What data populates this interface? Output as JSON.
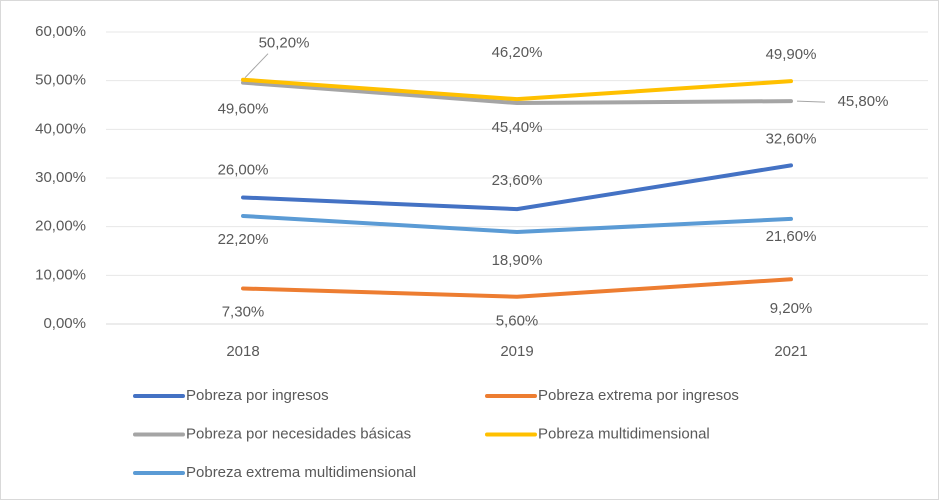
{
  "chart_data": {
    "type": "line",
    "categories": [
      "2018",
      "2019",
      "2021"
    ],
    "series": [
      {
        "name": "Pobreza por ingresos",
        "color": "#4472c4",
        "values": [
          26.0,
          23.6,
          32.6
        ],
        "value_labels": [
          "26,00%",
          "23,60%",
          "32,60%"
        ]
      },
      {
        "name": "Pobreza extrema por ingresos",
        "color": "#ed7d31",
        "values": [
          7.3,
          5.6,
          9.2
        ],
        "value_labels": [
          "7,30%",
          "5,60%",
          "9,20%"
        ]
      },
      {
        "name": "Pobreza por necesidades básicas",
        "color": "#a5a5a5",
        "values": [
          49.6,
          45.4,
          45.8
        ],
        "value_labels": [
          "49,60%",
          "45,40%",
          "45,80%"
        ]
      },
      {
        "name": "Pobreza multidimensional",
        "color": "#ffc000",
        "values": [
          50.2,
          46.2,
          49.9
        ],
        "value_labels": [
          "50,20%",
          "46,20%",
          "49,90%"
        ]
      },
      {
        "name": "Pobreza extrema multidimensional",
        "color": "#5b9bd5",
        "values": [
          22.2,
          18.9,
          21.6
        ],
        "value_labels": [
          "22,20%",
          "18,90%",
          "21,60%"
        ]
      }
    ],
    "ylim": [
      0,
      60
    ],
    "yticks": [
      {
        "value": 0,
        "label": "0,00%"
      },
      {
        "value": 10,
        "label": "10,00%"
      },
      {
        "value": 20,
        "label": "20,00%"
      },
      {
        "value": 30,
        "label": "30,00%"
      },
      {
        "value": 40,
        "label": "40,00%"
      },
      {
        "value": 50,
        "label": "50,00%"
      },
      {
        "value": 60,
        "label": "60,00%"
      }
    ],
    "grid": true,
    "legend": "bottom"
  }
}
